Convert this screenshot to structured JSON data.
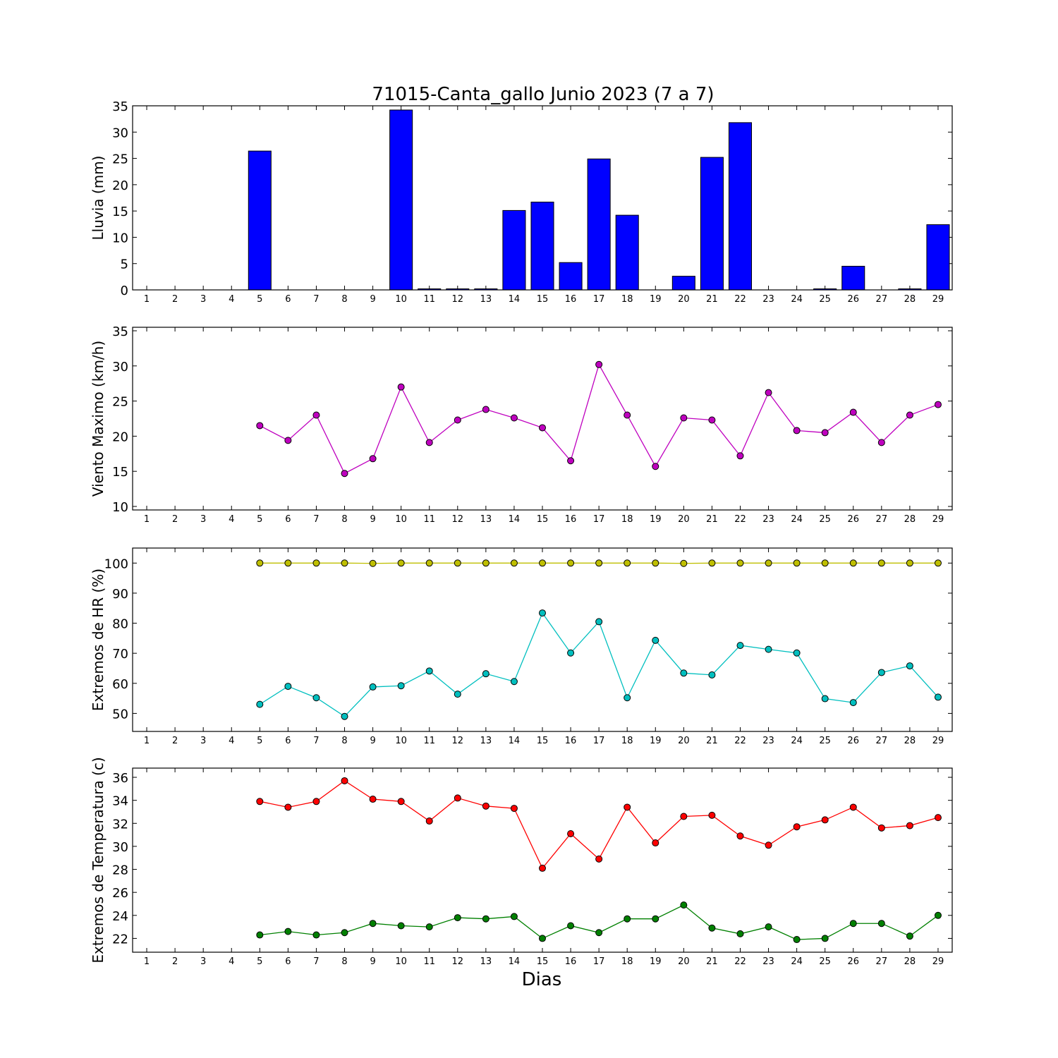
{
  "title": "71015-Canta_gallo Junio 2023  (7 a 7)",
  "xlabel": "Dias",
  "chart_data": [
    {
      "type": "bar",
      "ylabel": "Lluvia (mm)",
      "ylim": [
        0,
        35
      ],
      "yticks": [
        0,
        5,
        10,
        15,
        20,
        25,
        30,
        35
      ],
      "categories": [
        1,
        2,
        3,
        4,
        5,
        6,
        7,
        8,
        9,
        10,
        11,
        12,
        13,
        14,
        15,
        16,
        17,
        18,
        19,
        20,
        21,
        22,
        23,
        24,
        25,
        26,
        27,
        28,
        29
      ],
      "series": [
        {
          "color": "#0000ff",
          "values": [
            null,
            null,
            null,
            null,
            26.4,
            0,
            0,
            0,
            0,
            34.2,
            0.2,
            0.2,
            0.2,
            15.1,
            16.7,
            5.2,
            24.9,
            14.2,
            0,
            2.6,
            25.2,
            31.8,
            0,
            0,
            0.2,
            4.5,
            0,
            0.2,
            12.4
          ]
        }
      ]
    },
    {
      "type": "line",
      "ylabel": "Viento Maximo (km/h)",
      "ylim": [
        9.5,
        35.5
      ],
      "yticks": [
        10,
        15,
        20,
        25,
        30,
        35
      ],
      "categories": [
        1,
        2,
        3,
        4,
        5,
        6,
        7,
        8,
        9,
        10,
        11,
        12,
        13,
        14,
        15,
        16,
        17,
        18,
        19,
        20,
        21,
        22,
        23,
        24,
        25,
        26,
        27,
        28,
        29
      ],
      "series": [
        {
          "color": "#bf00bf",
          "values": [
            null,
            null,
            null,
            null,
            21.5,
            19.4,
            23.0,
            14.7,
            16.8,
            27.0,
            19.1,
            22.3,
            23.8,
            22.6,
            21.2,
            16.5,
            30.2,
            23.0,
            15.7,
            22.6,
            22.3,
            17.2,
            26.2,
            20.8,
            20.5,
            23.4,
            19.1,
            23.0,
            24.5
          ]
        }
      ]
    },
    {
      "type": "line",
      "ylabel": "Extremos de HR (%)",
      "ylim": [
        44,
        105
      ],
      "yticks": [
        50,
        60,
        70,
        80,
        90,
        100
      ],
      "categories": [
        1,
        2,
        3,
        4,
        5,
        6,
        7,
        8,
        9,
        10,
        11,
        12,
        13,
        14,
        15,
        16,
        17,
        18,
        19,
        20,
        21,
        22,
        23,
        24,
        25,
        26,
        27,
        28,
        29
      ],
      "series": [
        {
          "color": "#bfbf00",
          "values": [
            null,
            null,
            null,
            null,
            100,
            100,
            100,
            100,
            99.9,
            100,
            100,
            100,
            100,
            100,
            100,
            100,
            100,
            100,
            100,
            99.9,
            100,
            100,
            100,
            100,
            100,
            100,
            100,
            100,
            100
          ]
        },
        {
          "color": "#00bfbf",
          "values": [
            null,
            null,
            null,
            null,
            53.0,
            59.0,
            55.2,
            49.0,
            58.8,
            59.2,
            64.1,
            56.4,
            63.2,
            60.6,
            83.4,
            70.1,
            80.5,
            55.2,
            74.3,
            63.4,
            62.8,
            72.6,
            71.3,
            70.1,
            54.9,
            53.6,
            63.6,
            65.8,
            55.4
          ]
        }
      ]
    },
    {
      "type": "line",
      "ylabel": "Extremos de Temperatura (c)",
      "ylim": [
        20.8,
        36.8
      ],
      "yticks": [
        22,
        24,
        26,
        28,
        30,
        32,
        34,
        36
      ],
      "categories": [
        1,
        2,
        3,
        4,
        5,
        6,
        7,
        8,
        9,
        10,
        11,
        12,
        13,
        14,
        15,
        16,
        17,
        18,
        19,
        20,
        21,
        22,
        23,
        24,
        25,
        26,
        27,
        28,
        29
      ],
      "series": [
        {
          "color": "#ff0000",
          "values": [
            null,
            null,
            null,
            null,
            33.9,
            33.4,
            33.9,
            35.7,
            34.1,
            33.9,
            32.2,
            34.2,
            33.5,
            33.3,
            28.1,
            31.1,
            28.9,
            33.4,
            30.3,
            32.6,
            32.7,
            30.9,
            30.1,
            31.7,
            32.3,
            33.4,
            31.6,
            31.8,
            32.5
          ]
        },
        {
          "color": "#008000",
          "values": [
            null,
            null,
            null,
            null,
            22.3,
            22.6,
            22.3,
            22.5,
            23.3,
            23.1,
            23.0,
            23.8,
            23.7,
            23.9,
            22.0,
            23.1,
            22.5,
            23.7,
            23.7,
            24.9,
            22.9,
            22.4,
            23.0,
            21.9,
            22.0,
            23.3,
            23.3,
            22.2,
            24.0
          ]
        }
      ]
    }
  ]
}
